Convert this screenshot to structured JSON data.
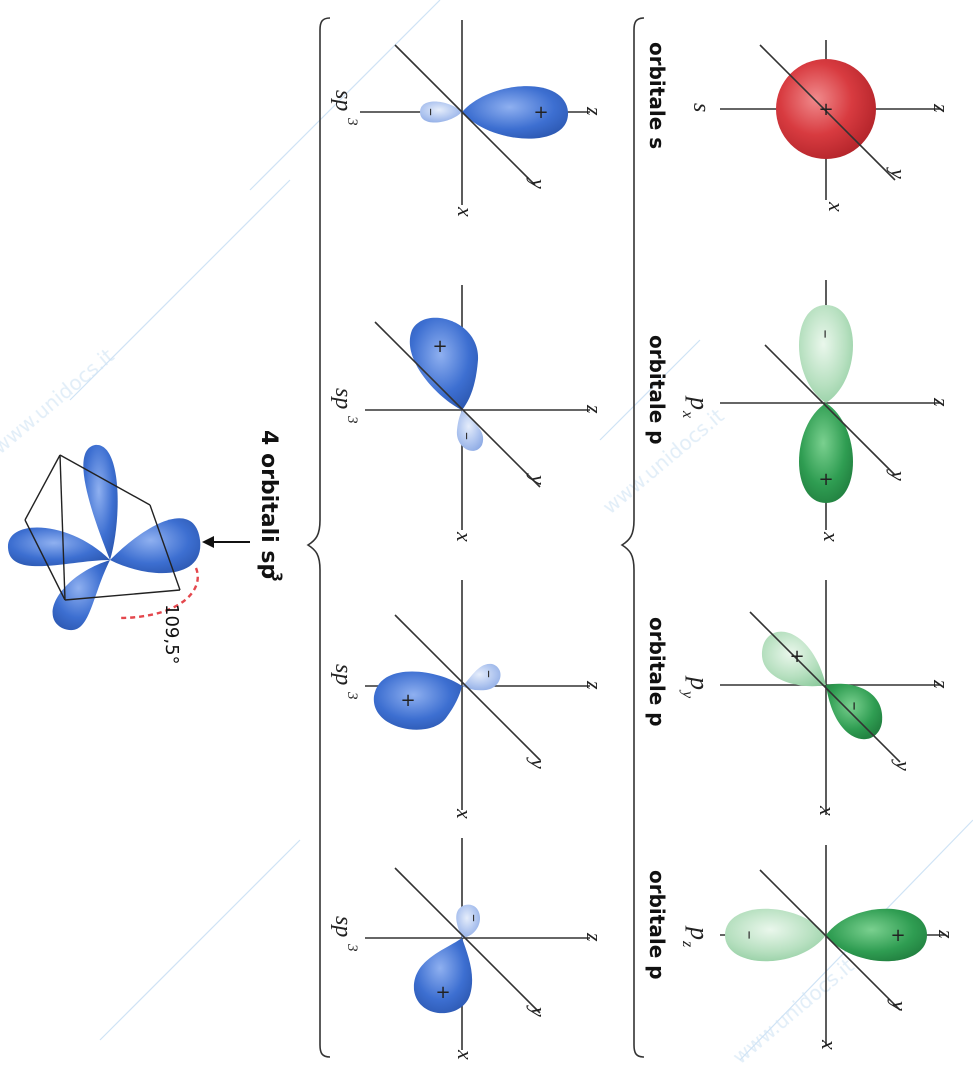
{
  "row1": {
    "title_s": "orbitale s",
    "title_p": "orbitale p",
    "s_label": "s",
    "px_label": "p",
    "px_sub": "x",
    "py_label": "p",
    "py_sub": "y",
    "pz_label": "p",
    "pz_sub": "z"
  },
  "row2": {
    "sp_label": "sp",
    "sp_sup": "3"
  },
  "axes": {
    "x": "x",
    "y": "y",
    "z": "z"
  },
  "signs": {
    "plus": "+",
    "minus": "–"
  },
  "result": {
    "title_text": "4 orbitali sp",
    "title_sup": "3",
    "angle": "109,5°"
  },
  "watermark": "www.unidocs.it",
  "colors": {
    "s_red": "#d9343b",
    "p_green": "#3aa85b",
    "p_green_light": "#b6dfbf",
    "sp3_blue": "#3d6fd1",
    "sp3_blue_light": "#a9c0ee",
    "axis": "#333333"
  }
}
